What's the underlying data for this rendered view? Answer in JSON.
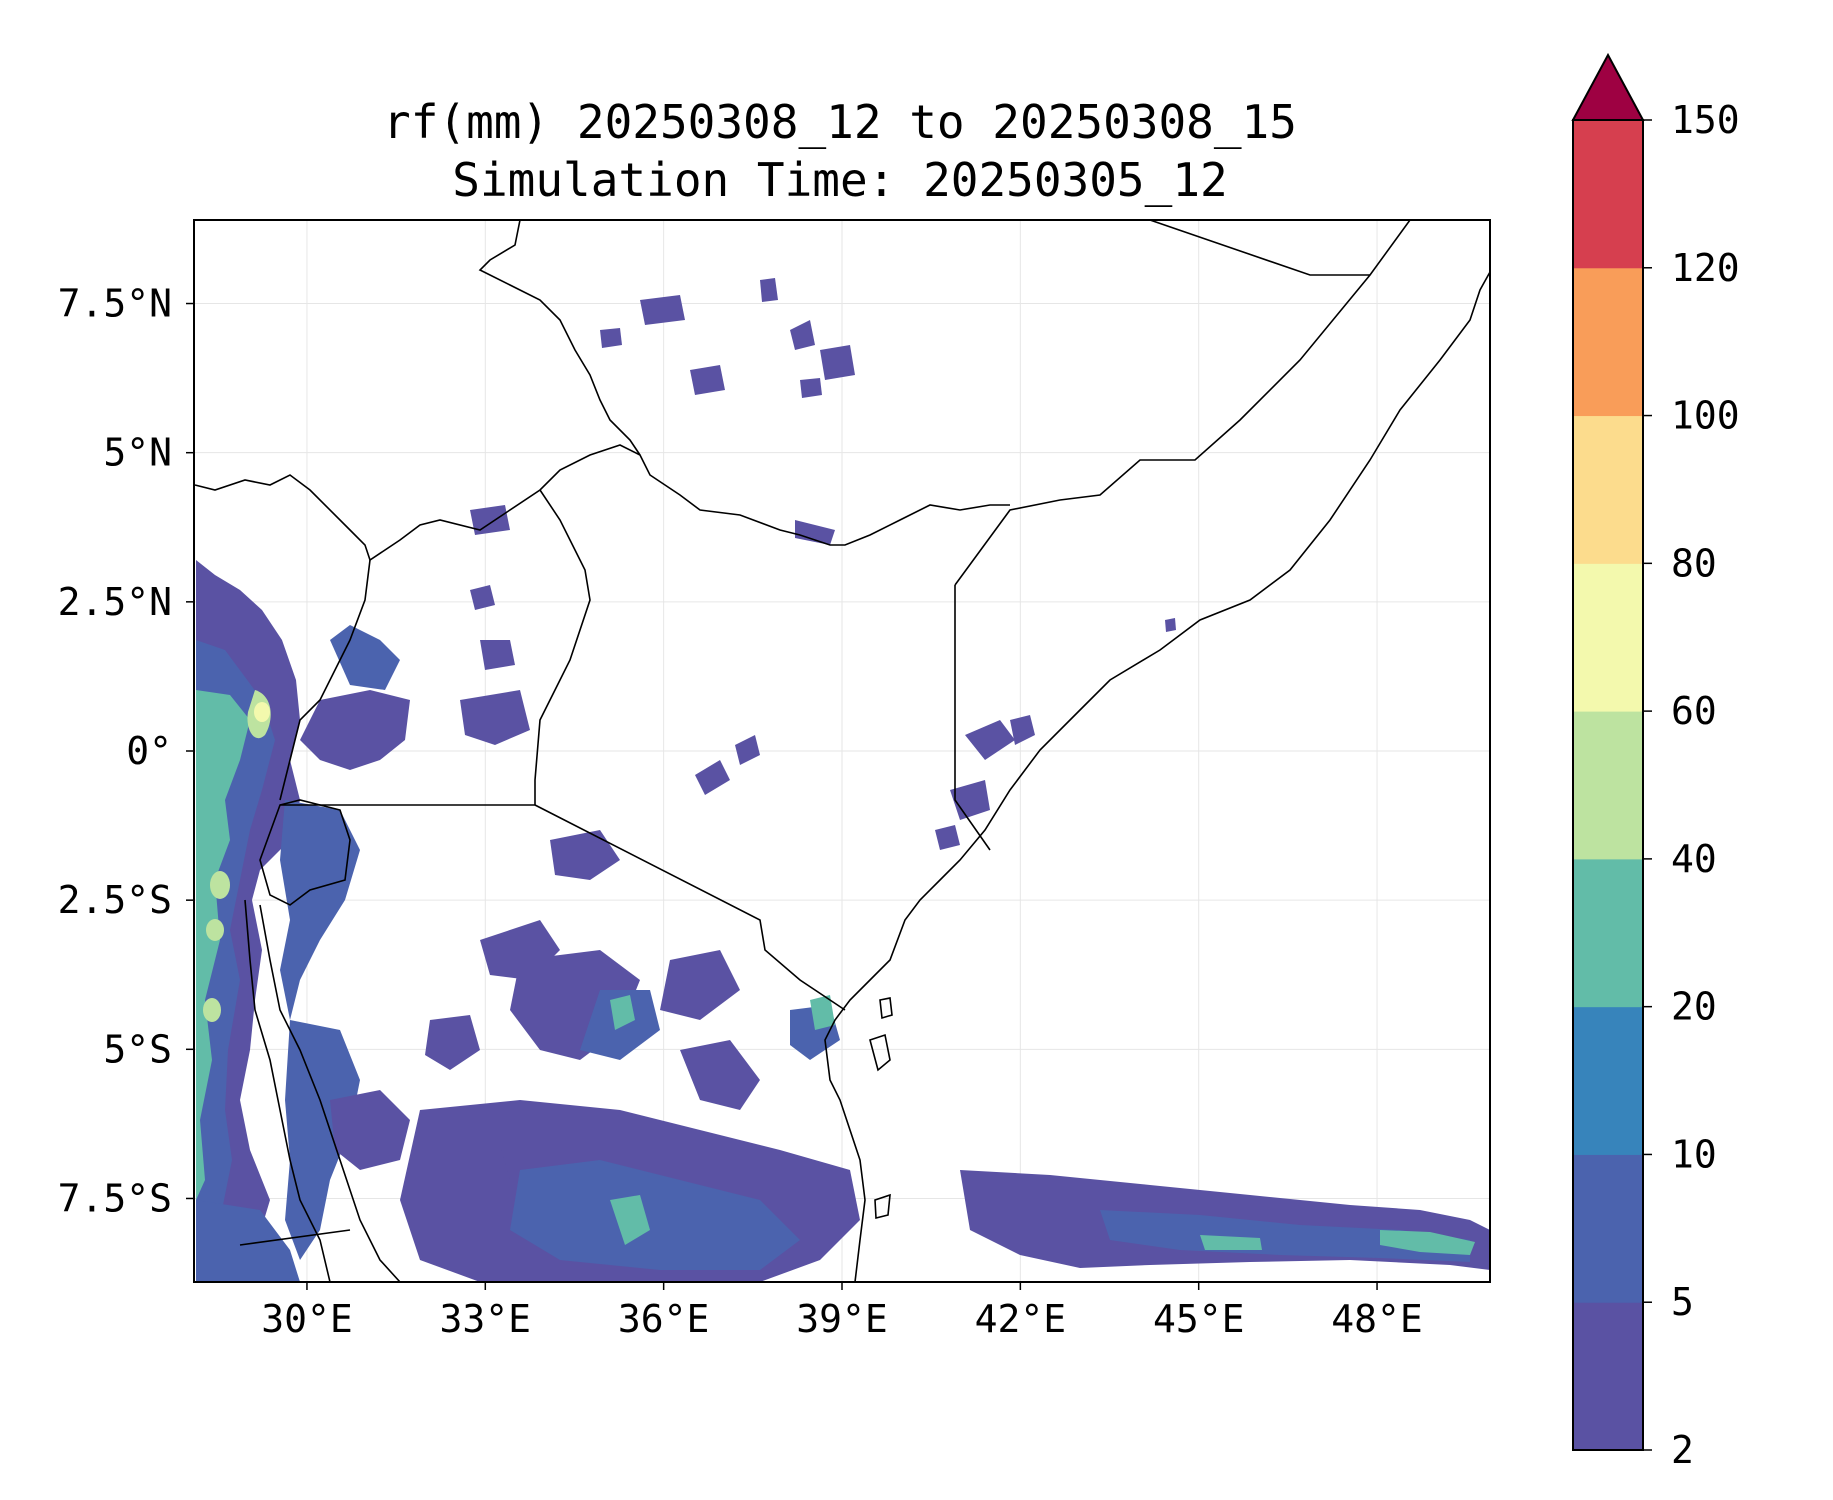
{
  "title": {
    "line1": "rf(mm) 20250308_12 to 20250308_15",
    "line2": "Simulation Time: 20250305_12"
  },
  "map": {
    "extent_lon": [
      28.1,
      49.9
    ],
    "extent_lat": [
      -8.9,
      8.9
    ],
    "x_ticks": [
      {
        "value": 30,
        "label": "30°E"
      },
      {
        "value": 33,
        "label": "33°E"
      },
      {
        "value": 36,
        "label": "36°E"
      },
      {
        "value": 39,
        "label": "39°E"
      },
      {
        "value": 42,
        "label": "42°E"
      },
      {
        "value": 45,
        "label": "45°E"
      },
      {
        "value": 48,
        "label": "48°E"
      }
    ],
    "y_ticks": [
      {
        "value": 7.5,
        "label": "7.5°N"
      },
      {
        "value": 5,
        "label": "5°N"
      },
      {
        "value": 2.5,
        "label": "2.5°N"
      },
      {
        "value": 0,
        "label": "0°"
      },
      {
        "value": -2.5,
        "label": "2.5°S"
      },
      {
        "value": -5,
        "label": "5°S"
      },
      {
        "value": -7.5,
        "label": "7.5°S"
      }
    ],
    "grid": true
  },
  "colorbar": {
    "levels": [
      "2",
      "5",
      "10",
      "20",
      "40",
      "60",
      "80",
      "100",
      "120",
      "150"
    ],
    "colors": [
      "#5a52a3",
      "#4b63ae",
      "#3784bb",
      "#62bca8",
      "#bde3a0",
      "#f3f9ad",
      "#fcdc8d",
      "#f99d59",
      "#d63f4f"
    ],
    "extend_color": "#9e0142"
  },
  "colors": {
    "rain_low": "#5a52a3",
    "rain_mid": "#4b63ae",
    "rain_high": "#62bca8",
    "rain_peak": "#bde3a0",
    "rain_max": "#f3f9ad"
  }
}
